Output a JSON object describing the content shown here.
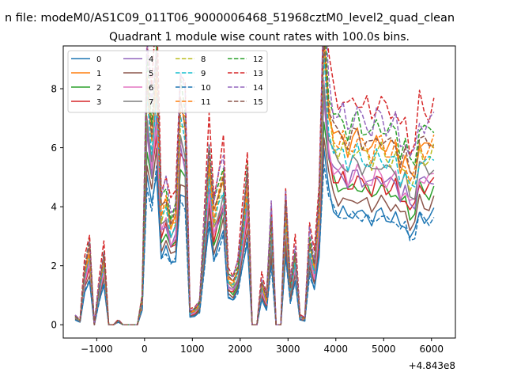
{
  "chart_data": {
    "type": "line",
    "suptitle": "n file: modeM0/AS1C09_011T06_9000006468_51968cztM0_level2_quad_clean",
    "title": "Quadrant 1 module wise count rates with 100.0s bins.",
    "xlabel": "",
    "ylabel": "",
    "x_offset_label": "+4.843e8",
    "xlim": [
      -1700,
      6500
    ],
    "ylim": [
      -0.45,
      9.45
    ],
    "xticks": [
      -1000,
      0,
      1000,
      2000,
      3000,
      4000,
      5000,
      6000
    ],
    "xtick_labels": [
      "−1000",
      "0",
      "1000",
      "2000",
      "3000",
      "4000",
      "5000",
      "6000"
    ],
    "yticks": [
      0,
      2,
      4,
      6,
      8
    ],
    "ytick_labels": [
      "0",
      "2",
      "4",
      "6",
      "8"
    ],
    "grid": false,
    "legend_position": "top-left",
    "legend_columns": 4,
    "x": [
      -1450,
      -1350,
      -1250,
      -1150,
      -1050,
      -950,
      -850,
      -750,
      -650,
      -550,
      -450,
      -350,
      -250,
      -150,
      -50,
      50,
      150,
      250,
      350,
      450,
      550,
      650,
      750,
      850,
      950,
      1050,
      1150,
      1250,
      1350,
      1450,
      1550,
      1650,
      1750,
      1850,
      1950,
      2050,
      2150,
      2250,
      2350,
      2450,
      2550,
      2650,
      2750,
      2850,
      2950,
      3050,
      3150,
      3250,
      3350,
      3450,
      3550,
      3650,
      3750,
      3850,
      3950,
      4050,
      4150,
      4250,
      4350,
      4450,
      4550,
      4650,
      4750,
      4850,
      4950,
      5050,
      5150,
      5250,
      5350,
      5450,
      5550,
      5650,
      5750,
      5850,
      5950,
      6050
    ],
    "base_profile": [
      0.2,
      0.1,
      1.3,
      1.8,
      0.0,
      0.9,
      1.6,
      0.0,
      0.0,
      0.1,
      0.0,
      0.0,
      0.0,
      0.0,
      0.6,
      5.8,
      4.6,
      6.1,
      2.7,
      3.0,
      2.4,
      2.6,
      5.2,
      4.8,
      0.3,
      0.35,
      0.5,
      2.2,
      4.0,
      2.6,
      3.1,
      3.6,
      1.1,
      1.0,
      1.3,
      2.3,
      3.4,
      0.0,
      0.0,
      1.0,
      0.6,
      2.5,
      0.0,
      0.0,
      2.8,
      0.9,
      1.7,
      0.2,
      0.15,
      2.0,
      1.4,
      2.8,
      6.8,
      5.2,
      4.6,
      4.4,
      4.5,
      4.2,
      4.4,
      4.5,
      4.3,
      4.3,
      4.1,
      4.4,
      4.4,
      4.2,
      4.2,
      4.3,
      3.8,
      4.0,
      3.5,
      3.6,
      4.4,
      4.2,
      4.2,
      4.4
    ],
    "series": [
      {
        "name": "0",
        "color": "#1f77b4",
        "dash": "solid",
        "scale": 0.86
      },
      {
        "name": "1",
        "color": "#ff7f0e",
        "dash": "solid",
        "scale": 1.42
      },
      {
        "name": "2",
        "color": "#2ca02c",
        "dash": "solid",
        "scale": 1.06
      },
      {
        "name": "3",
        "color": "#d62728",
        "dash": "solid",
        "scale": 1.1
      },
      {
        "name": "4",
        "color": "#9467bd",
        "dash": "solid",
        "scale": 1.14
      },
      {
        "name": "5",
        "color": "#8c564b",
        "dash": "solid",
        "scale": 0.96
      },
      {
        "name": "6",
        "color": "#e377c2",
        "dash": "solid",
        "scale": 1.16
      },
      {
        "name": "7",
        "color": "#7f7f7f",
        "dash": "solid",
        "scale": 1.24
      },
      {
        "name": "8",
        "color": "#bcbd22",
        "dash": "dashed",
        "scale": 1.34
      },
      {
        "name": "9",
        "color": "#17becf",
        "dash": "dashed",
        "scale": 1.3
      },
      {
        "name": "10",
        "color": "#1f77b4",
        "dash": "dashed",
        "scale": 0.84
      },
      {
        "name": "11",
        "color": "#ff7f0e",
        "dash": "dashed",
        "scale": 1.4
      },
      {
        "name": "12",
        "color": "#2ca02c",
        "dash": "dashed",
        "scale": 1.55
      },
      {
        "name": "13",
        "color": "#d62728",
        "dash": "dashed",
        "scale": 1.72
      },
      {
        "name": "14",
        "color": "#9467bd",
        "dash": "dashed",
        "scale": 1.6
      },
      {
        "name": "15",
        "color": "#8c564b",
        "dash": "dashed",
        "scale": 1.45
      }
    ]
  }
}
